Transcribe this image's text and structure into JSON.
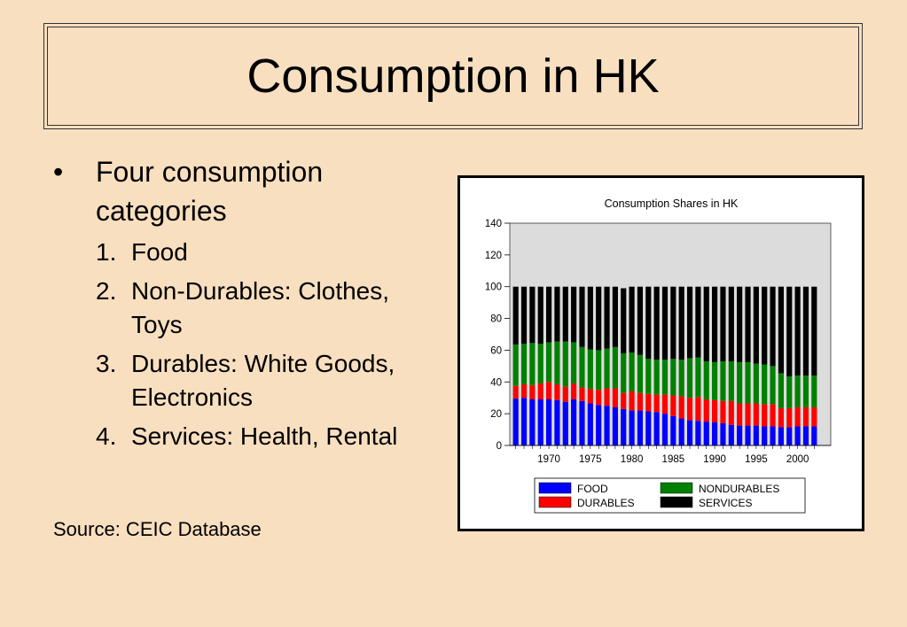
{
  "slide": {
    "title": "Consumption in HK",
    "bullet_marker": "•",
    "bullet": "Four consumption categories",
    "items": [
      {
        "num": "1.",
        "text": "Food"
      },
      {
        "num": "2.",
        "text": "Non-Durables: Clothes, Toys"
      },
      {
        "num": "3.",
        "text": "Durables: White Goods, Electronics"
      },
      {
        "num": "4.",
        "text": "Services: Health, Rental"
      }
    ],
    "source": "Source: CEIC Database"
  },
  "chart_data": {
    "type": "bar",
    "stacked": true,
    "title": "Consumption Shares in HK",
    "xlabel": "",
    "ylabel": "",
    "ylim": [
      0,
      140
    ],
    "yticks": [
      0,
      20,
      40,
      60,
      80,
      100,
      120,
      140
    ],
    "x_tick_labels": [
      "1970",
      "1975",
      "1980",
      "1985",
      "1990",
      "1995",
      "2000"
    ],
    "categories": [
      1966,
      1967,
      1968,
      1969,
      1970,
      1971,
      1972,
      1973,
      1974,
      1975,
      1976,
      1977,
      1978,
      1979,
      1980,
      1981,
      1982,
      1983,
      1984,
      1985,
      1986,
      1987,
      1988,
      1989,
      1990,
      1991,
      1992,
      1993,
      1994,
      1995,
      1996,
      1997,
      1998,
      1999,
      2000,
      2001,
      2002
    ],
    "series": [
      {
        "name": "FOOD",
        "color": "#0000ff",
        "values": [
          29.5,
          30,
          29,
          29,
          29,
          28.5,
          27.5,
          29,
          28,
          26.5,
          25.5,
          25,
          24,
          23,
          22,
          22,
          21.5,
          21,
          20,
          18.5,
          17,
          16,
          15.5,
          15,
          14.5,
          14,
          13,
          12.5,
          12.5,
          12.5,
          12,
          12,
          11.5,
          11.5,
          12,
          12,
          12
        ]
      },
      {
        "name": "DURABLES",
        "color": "#ff0000",
        "values": [
          8,
          8.5,
          9,
          10,
          11,
          10,
          9.5,
          10,
          8.5,
          9,
          9.5,
          11,
          12,
          10,
          12,
          11,
          11,
          11,
          12,
          13,
          14,
          14,
          15,
          14,
          14,
          14,
          15,
          14,
          14,
          14,
          14,
          14,
          12,
          12,
          12,
          12,
          12
        ]
      },
      {
        "name": "NONDURABLES",
        "color": "#008000",
        "values": [
          26,
          25.5,
          26.5,
          25,
          25,
          27,
          28.5,
          26,
          25.5,
          25,
          25,
          25,
          26,
          25,
          24.5,
          24,
          22,
          22,
          22,
          23,
          23,
          25,
          25,
          24,
          24,
          25,
          25,
          26,
          26,
          25,
          25,
          24,
          22,
          20,
          20,
          20,
          20
        ]
      },
      {
        "name": "SERVICES",
        "color": "#000000",
        "values": [
          36.5,
          36,
          35.5,
          36,
          35,
          34.5,
          34.5,
          35,
          38,
          39.5,
          40,
          39,
          38,
          41,
          41.5,
          43,
          45.5,
          46,
          46,
          45.5,
          46,
          45,
          44.5,
          47,
          47.5,
          47,
          47,
          47.5,
          47.5,
          48.5,
          49,
          50,
          54.5,
          56.5,
          56,
          56,
          56
        ]
      }
    ],
    "legend": "bottom",
    "plot_background": "#dcdcdc",
    "grid": false
  }
}
